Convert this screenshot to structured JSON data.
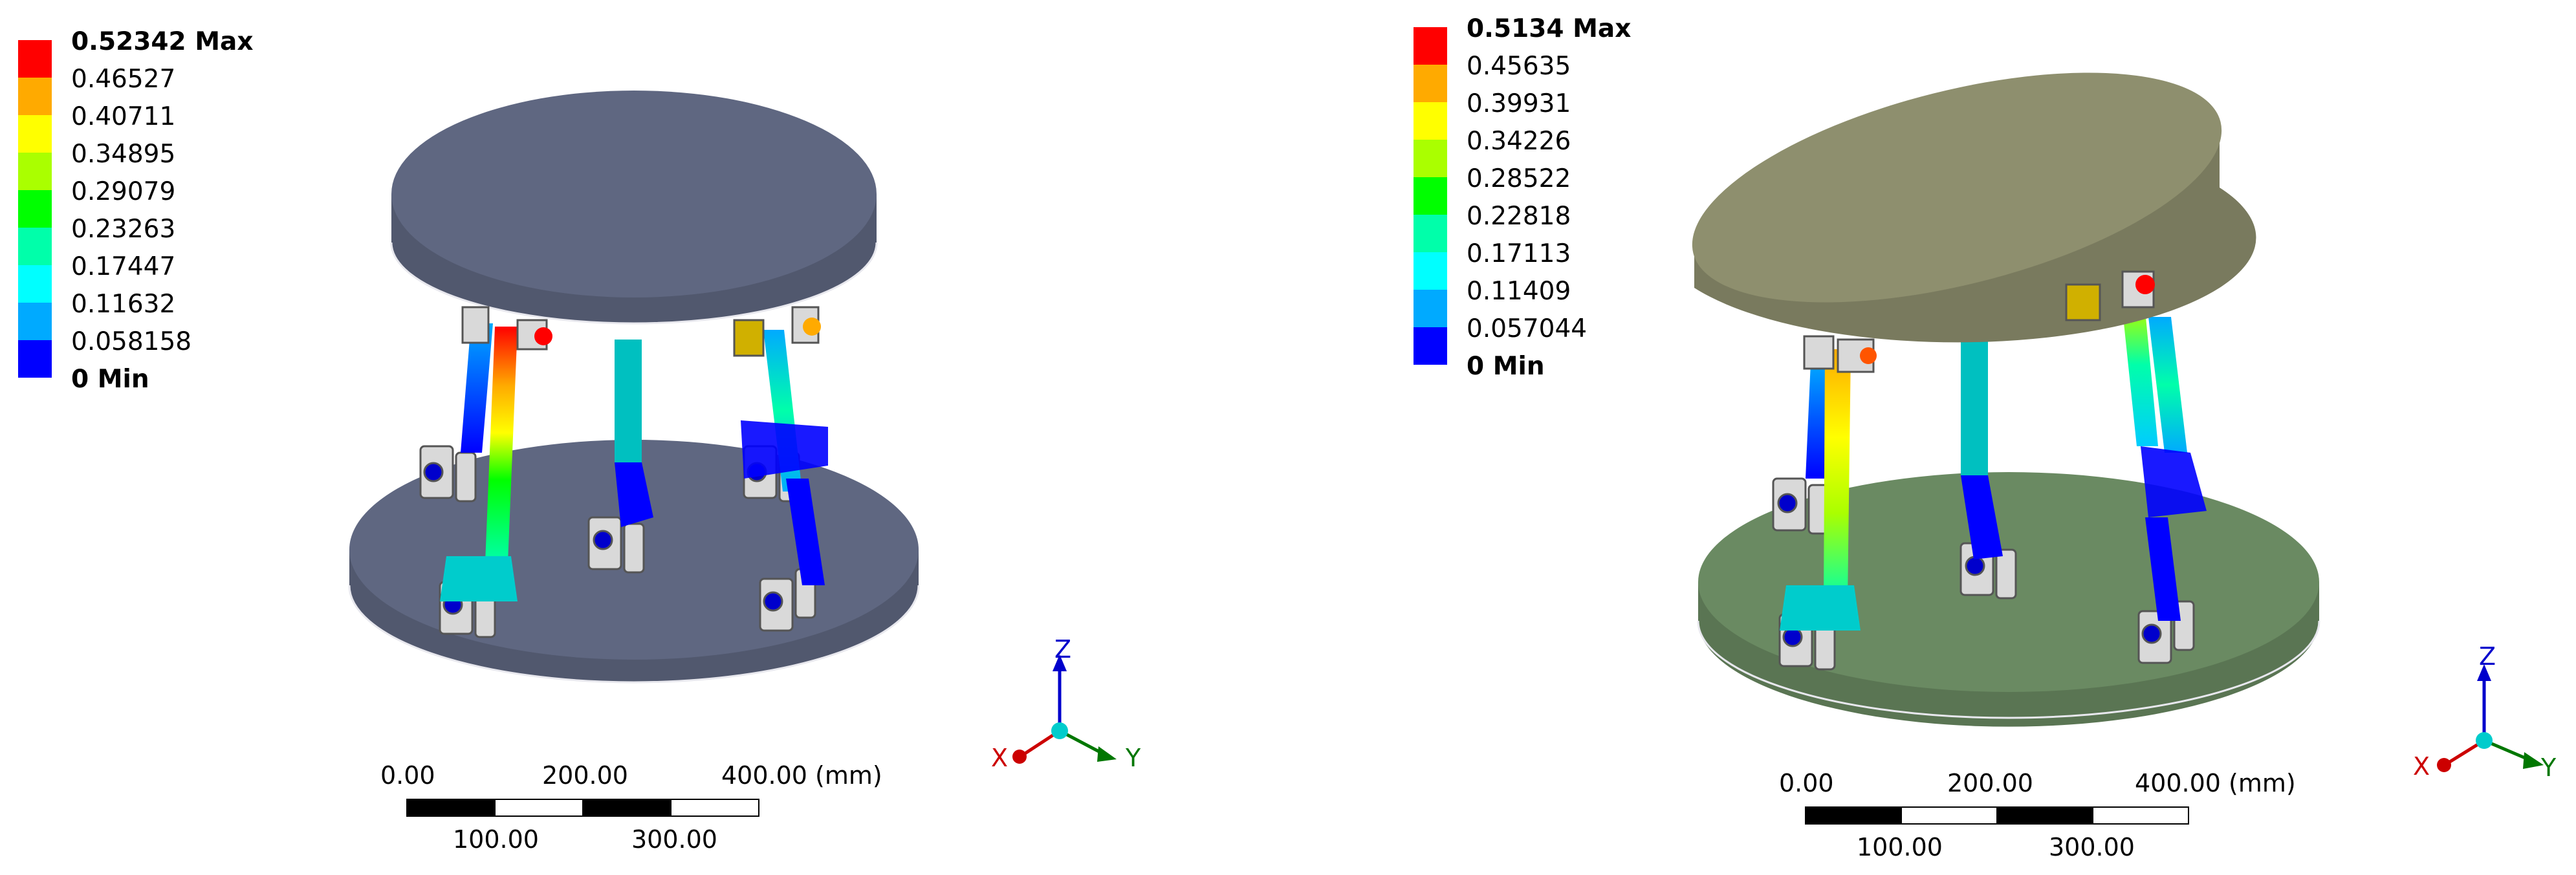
{
  "views": [
    {
      "legend": {
        "max_label": "0.52342 Max",
        "levels": [
          "0.46527",
          "0.40711",
          "0.34895",
          "0.29079",
          "0.23263",
          "0.17447",
          "0.11632",
          "0.058158"
        ],
        "min_label": "0 Min",
        "colors": [
          "#ff0000",
          "#ffaa00",
          "#ffff00",
          "#aaff00",
          "#00ff00",
          "#00ffaa",
          "#00ffff",
          "#00aaff",
          "#0000ff"
        ]
      },
      "model": {
        "platform_color": "#5f6781",
        "base_color": "#5f6781"
      },
      "scale": {
        "top_ticks": [
          "0.00",
          "200.00",
          "400.00 (mm)"
        ],
        "bottom_ticks": [
          "100.00",
          "300.00"
        ]
      },
      "triad": {
        "x": "X",
        "y": "Y",
        "z": "Z"
      }
    },
    {
      "legend": {
        "max_label": "0.5134 Max",
        "levels": [
          "0.45635",
          "0.39931",
          "0.34226",
          "0.28522",
          "0.22818",
          "0.17113",
          "0.11409",
          "0.057044"
        ],
        "min_label": "0 Min",
        "colors": [
          "#ff0000",
          "#ffaa00",
          "#ffff00",
          "#aaff00",
          "#00ff00",
          "#00ffaa",
          "#00ffff",
          "#00aaff",
          "#0000ff"
        ]
      },
      "model": {
        "platform_color": "#8e8f6e",
        "base_color": "#6a8a62"
      },
      "scale": {
        "top_ticks": [
          "0.00",
          "200.00",
          "400.00 (mm)"
        ],
        "bottom_ticks": [
          "100.00",
          "300.00"
        ]
      },
      "triad": {
        "x": "X",
        "y": "Y",
        "z": "Z"
      }
    }
  ]
}
